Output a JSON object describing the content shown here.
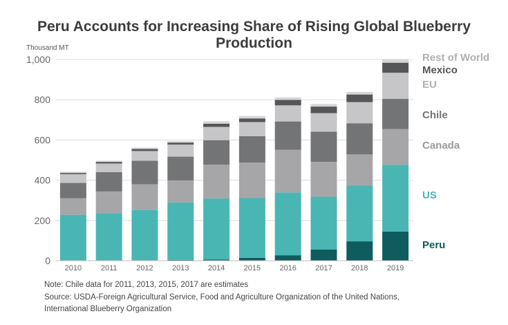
{
  "chart_data": {
    "type": "bar",
    "stacked": true,
    "title": "Peru Accounts for Increasing Share of Rising Global Blueberry Production",
    "unit_label": "Thousand MT",
    "ylim": [
      0,
      1000
    ],
    "yticks": [
      0,
      200,
      400,
      600,
      800,
      1000
    ],
    "ytick_labels": [
      "0",
      "200",
      "400",
      "600",
      "800",
      "1,000"
    ],
    "grid": true,
    "legend": "right, labels aligned to 2019 bar segments",
    "categories": [
      "2010",
      "2011",
      "2012",
      "2013",
      "2014",
      "2015",
      "2016",
      "2017",
      "2018",
      "2019"
    ],
    "series": [
      {
        "name": "Peru",
        "color": "#0e5c5e",
        "values": [
          0,
          1,
          2,
          4,
          6,
          14,
          27,
          55,
          96,
          145
        ]
      },
      {
        "name": "US",
        "color": "#49b6b4",
        "values": [
          228,
          235,
          250,
          285,
          303,
          297,
          312,
          263,
          277,
          332
        ]
      },
      {
        "name": "Canada",
        "color": "#a6a6a8",
        "values": [
          82,
          108,
          128,
          110,
          168,
          177,
          212,
          173,
          155,
          177
        ]
      },
      {
        "name": "Chile",
        "color": "#737475",
        "values": [
          77,
          96,
          117,
          118,
          122,
          131,
          141,
          150,
          155,
          150
        ]
      },
      {
        "name": "EU",
        "color": "#c6c6c8",
        "values": [
          43,
          43,
          48,
          60,
          66,
          70,
          80,
          92,
          105,
          130
        ]
      },
      {
        "name": "Mexico",
        "color": "#555657",
        "values": [
          6,
          8,
          10,
          10,
          16,
          18,
          27,
          33,
          38,
          50
        ]
      },
      {
        "name": "Rest of World",
        "color": "#d6d6d8",
        "values": [
          6,
          6,
          7,
          7,
          12,
          12,
          13,
          13,
          13,
          18
        ]
      }
    ],
    "notes": [
      "Note: Chile data for 2011, 2013, 2015, 2017 are estimates",
      "Source: USDA-Foreign Agricultural Service, Food and Agriculture Organization of the United Nations,",
      "International Blueberry Organization"
    ]
  }
}
